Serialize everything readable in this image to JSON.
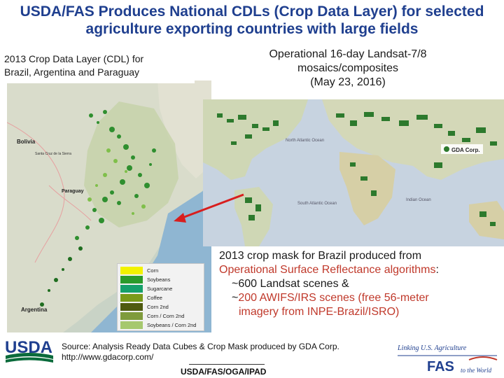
{
  "title": "USDA/FAS Produces National CDLs (Crop Data Layer) for selected agriculture exporting countries with large fields",
  "left_caption": {
    "line1": "2013 Crop Data Layer  (CDL) for",
    "line2": "Brazil, Argentina and Paraguay"
  },
  "right_caption": {
    "line1": "Operational 16-day Landsat-7/8",
    "line2": "mosaics/composites",
    "line3": "(May 23, 2016)"
  },
  "map_left_labels": {
    "bolivia": "Bolivia",
    "paraguay": "Paraguay",
    "argentina": "Argentina",
    "santa_cruz": "Santa Cruz de la Sierra"
  },
  "map_right_labels": {
    "atlantic_north": "North Atlantic Ocean",
    "atlantic_south": "South Atlantic Ocean",
    "indian": "Indian Ocean",
    "gda": "GDA Corp."
  },
  "legend": [
    {
      "label": "Corn",
      "color": "#f2f200"
    },
    {
      "label": "Soybeans",
      "color": "#2a9b2a"
    },
    {
      "label": "Sugarcane",
      "color": "#15a06a"
    },
    {
      "label": "Coffee",
      "color": "#7a9a1a"
    },
    {
      "label": "Corn 2nd",
      "color": "#4f5a10"
    },
    {
      "label": "Corn / Corn 2nd",
      "color": "#7f9b3c"
    },
    {
      "label": "Soybeans / Corn 2nd",
      "color": "#a6c86e"
    }
  ],
  "crop_mask": {
    "line1": "2013 crop mask for Brazil produced from",
    "line2_red": "Operational Surface Reflectance algorithms",
    "line2_tail": ":",
    "line3": "~600 Landsat scenes &",
    "line4_prefix": "~",
    "line4_red": "200 AWIFS/IRS  scenes (free  56-meter",
    "line5_red": "imagery from INPE-Brazil/ISRO)"
  },
  "source": {
    "line1": "Source: Analysis Ready Data Cubes & Crop Mask produced by GDA Corp.",
    "line2": "http://www.gdacorp.com/"
  },
  "footer_code": "USDA/FAS/OGA/IPAD",
  "usda_logo_text": "USDA",
  "fas_logo": {
    "tagline": "Linking U.S. Agriculture",
    "acronym": "FAS",
    "tail": "to the World"
  },
  "colors": {
    "title": "#1f3f8f",
    "red_text": "#c0392b",
    "arrow": "#d81e1e",
    "usda_green": "#0a6b3b",
    "usda_blue": "#1f3f8f"
  }
}
